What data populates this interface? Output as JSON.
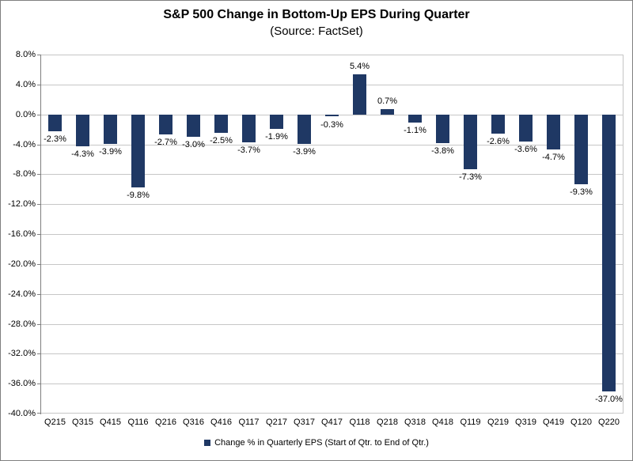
{
  "chart_data": {
    "type": "bar",
    "title": "S&P 500 Change in Bottom-Up EPS During Quarter",
    "subtitle": "(Source: FactSet)",
    "categories": [
      "Q215",
      "Q315",
      "Q415",
      "Q116",
      "Q216",
      "Q316",
      "Q416",
      "Q117",
      "Q217",
      "Q317",
      "Q417",
      "Q118",
      "Q218",
      "Q318",
      "Q418",
      "Q119",
      "Q219",
      "Q319",
      "Q419",
      "Q120",
      "Q220"
    ],
    "values": [
      -2.3,
      -4.3,
      -3.9,
      -9.8,
      -2.7,
      -3.0,
      -2.5,
      -3.7,
      -1.9,
      -3.9,
      -0.3,
      5.4,
      0.7,
      -1.1,
      -3.8,
      -7.3,
      -2.6,
      -3.6,
      -4.7,
      -9.3,
      -37.0
    ],
    "data_label_format": "0.0%",
    "legend": "Change % in Quarterly EPS (Start of Qtr. to End of Qtr.)",
    "legend_position": "bottom",
    "xlabel": "",
    "ylabel": "",
    "ylim": [
      -40,
      8
    ],
    "ytick_step": 4,
    "ytick_labels": [
      "8.0%",
      "4.0%",
      "0.0%",
      "-4.0%",
      "-8.0%",
      "-12.0%",
      "-16.0%",
      "-20.0%",
      "-24.0%",
      "-28.0%",
      "-32.0%",
      "-36.0%",
      "-40.0%"
    ],
    "grid": true
  },
  "colors": {
    "bar": "#1f3864",
    "gridline": "#c6c6c6",
    "axis": "#7f7f7f",
    "frame_border": "#7f7f7f",
    "text": "#000000",
    "background": "#ffffff"
  }
}
